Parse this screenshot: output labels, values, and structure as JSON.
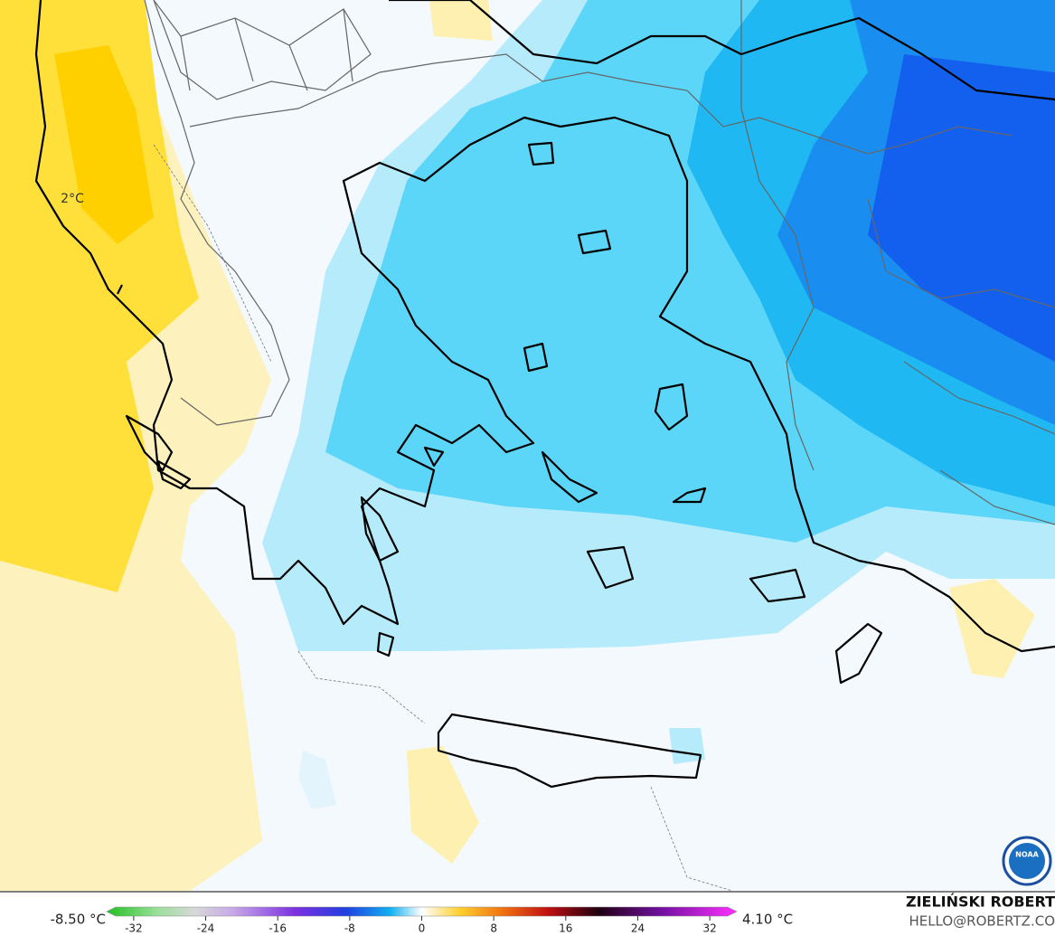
{
  "map": {
    "label": "2°C",
    "logo": "NOAA"
  },
  "colorbar": {
    "min_label": "-8.50 °C",
    "max_label": "4.10 °C",
    "lim": [
      -35,
      35
    ],
    "ticks": [
      -32,
      -24,
      -16,
      -8,
      0,
      8,
      16,
      24,
      32
    ]
  },
  "credit": {
    "name": "ZIELIŃSKI ROBERT",
    "email": "HELLO@ROBERTZ.CO"
  }
}
